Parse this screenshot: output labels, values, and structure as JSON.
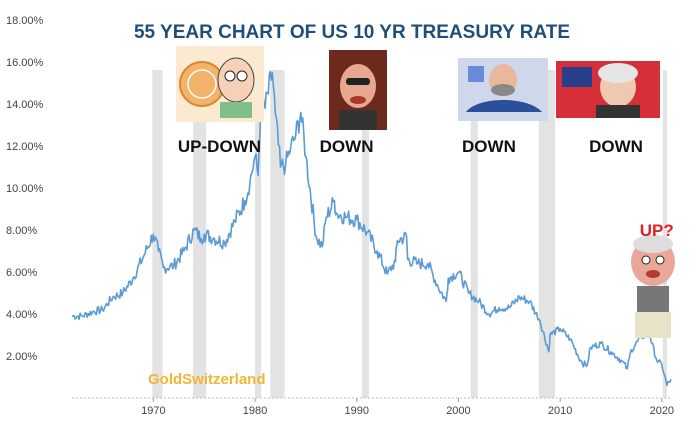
{
  "chart_data": {
    "type": "line",
    "title": "55 YEAR CHART OF US 10 YR TREASURY RATE",
    "xlabel": "",
    "ylabel": "",
    "xlim": [
      1962,
      2021
    ],
    "ylim": [
      0,
      18
    ],
    "x_ticks": [
      1970,
      1980,
      1990,
      2000,
      2010,
      2020
    ],
    "y_ticks": [
      "2.00%",
      "4.00%",
      "6.00%",
      "8.00%",
      "10.00%",
      "12.00%",
      "14.00%",
      "16.00%",
      "18.00%"
    ],
    "grid": false,
    "legend": "none",
    "line_color": "#5b9bd5",
    "recession_band_color": "#e3e3e3",
    "recession_bands": [
      [
        1969.9,
        1970.9
      ],
      [
        1973.9,
        1975.2
      ],
      [
        1980.0,
        1980.6
      ],
      [
        1981.5,
        1982.9
      ],
      [
        1990.5,
        1991.2
      ],
      [
        2001.2,
        2001.9
      ],
      [
        2007.9,
        2009.5
      ],
      [
        2020.1,
        2020.5
      ]
    ],
    "series": [
      {
        "name": "",
        "x": [
          1962,
          1963,
          1964,
          1965,
          1966,
          1967,
          1968,
          1969,
          1970,
          1970.5,
          1971,
          1972,
          1973,
          1974,
          1974.7,
          1975,
          1976,
          1977,
          1978,
          1979,
          1979.5,
          1980,
          1980.3,
          1980.6,
          1981,
          1981.7,
          1982,
          1982.5,
          1983,
          1983.5,
          1984,
          1984.5,
          1985,
          1986,
          1986.6,
          1987,
          1987.8,
          1988,
          1989,
          1990,
          1991,
          1992,
          1993,
          1993.8,
          1994,
          1994.9,
          1995,
          1996,
          1997,
          1998,
          1998.8,
          1999,
          2000,
          2001,
          2002,
          2003,
          2004,
          2005,
          2006,
          2007,
          2008,
          2008.9,
          2009,
          2010,
          2011,
          2012,
          2012.6,
          2013,
          2014,
          2015,
          2016,
          2016.6,
          2017,
          2018,
          2018.8,
          2019,
          2019.6,
          2020,
          2020.5,
          2020.9
        ],
        "values": [
          3.9,
          3.9,
          4.1,
          4.2,
          4.8,
          5.0,
          5.7,
          6.7,
          7.8,
          7.0,
          6.2,
          6.3,
          7.0,
          8.0,
          7.6,
          7.8,
          7.6,
          7.4,
          8.4,
          9.4,
          10.3,
          11.5,
          10.6,
          14.5,
          13.8,
          15.5,
          13.5,
          11.0,
          11.1,
          11.9,
          12.5,
          13.6,
          11.5,
          7.7,
          7.2,
          8.6,
          9.4,
          8.8,
          8.6,
          8.5,
          7.9,
          7.0,
          5.9,
          6.5,
          7.5,
          7.7,
          6.6,
          6.4,
          6.4,
          5.3,
          4.6,
          5.7,
          6.0,
          5.0,
          4.6,
          4.0,
          4.3,
          4.3,
          4.8,
          4.6,
          3.7,
          2.2,
          3.0,
          3.3,
          2.8,
          1.8,
          1.5,
          2.4,
          2.6,
          2.2,
          1.8,
          1.4,
          2.3,
          2.9,
          3.1,
          2.6,
          1.7,
          1.6,
          0.6,
          0.9
        ]
      }
    ],
    "annotations": [
      {
        "text": "UP-DOWN",
        "x": 1976.5,
        "y": 12.0
      },
      {
        "text": "DOWN",
        "x": 1989.0,
        "y": 12.0
      },
      {
        "text": "DOWN",
        "x": 2003.0,
        "y": 12.0
      },
      {
        "text": "DOWN",
        "x": 2015.5,
        "y": 12.0
      },
      {
        "text": "UP?",
        "x": 2019.5,
        "y": 8.0
      }
    ],
    "watermark": "GoldSwitzerland"
  },
  "pictures": [
    {
      "name": "cartoon-fed-chair-1970s"
    },
    {
      "name": "cartoon-fed-chair-greenspan"
    },
    {
      "name": "cartoon-fed-chair-bernanke"
    },
    {
      "name": "cartoon-fed-chair-yellen"
    },
    {
      "name": "cartoon-fed-chair-powell"
    }
  ]
}
